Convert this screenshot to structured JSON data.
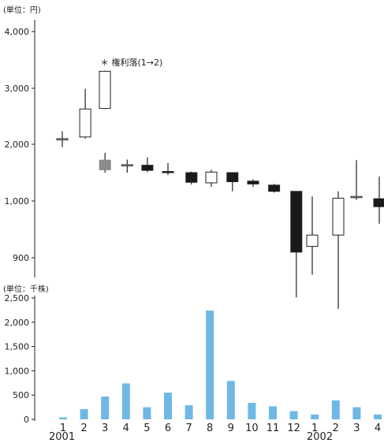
{
  "chart_data": [
    {
      "type": "candlestick",
      "unit_label": "(単位：円)",
      "yticks": [
        {
          "value": 900,
          "label": "900"
        },
        {
          "value": 1000,
          "label": "1,000"
        },
        {
          "value": 2000,
          "label": "2,000"
        },
        {
          "value": 3000,
          "label": "3,000"
        },
        {
          "value": 4000,
          "label": "4,000"
        }
      ],
      "annotation": "＊ 権利落(1→2)",
      "categories": [
        "1",
        "2",
        "3",
        "4",
        "5",
        "6",
        "7",
        "8",
        "9",
        "10",
        "11",
        "12",
        "1",
        "2",
        "3",
        "4"
      ],
      "year_labels": [
        "2001",
        "2002"
      ],
      "candles": [
        {
          "open": 2100,
          "high": 2230,
          "low": 1950,
          "close": 2080,
          "kind": "white"
        },
        {
          "open": 2130,
          "high": 2990,
          "low": 2100,
          "close": 2630,
          "kind": "white"
        },
        {
          "open": 2640,
          "high": 3310,
          "low": 2630,
          "close": 3300,
          "kind": "white"
        },
        {
          "open": 1720,
          "high": 1850,
          "low": 1500,
          "close": 1550,
          "kind": "gray"
        },
        {
          "open": 1640,
          "high": 1730,
          "low": 1500,
          "close": 1630,
          "kind": "white"
        },
        {
          "open": 1630,
          "high": 1770,
          "low": 1510,
          "close": 1540,
          "kind": "black"
        },
        {
          "open": 1520,
          "high": 1670,
          "low": 1460,
          "close": 1500,
          "kind": "black"
        },
        {
          "open": 1500,
          "high": 1520,
          "low": 1290,
          "close": 1330,
          "kind": "black"
        },
        {
          "open": 1320,
          "high": 1550,
          "low": 1250,
          "close": 1510,
          "kind": "white"
        },
        {
          "open": 1500,
          "high": 1500,
          "low": 1170,
          "close": 1340,
          "kind": "black"
        },
        {
          "open": 1350,
          "high": 1380,
          "low": 1250,
          "close": 1300,
          "kind": "black"
        },
        {
          "open": 1280,
          "high": 1300,
          "low": 1150,
          "close": 1170,
          "kind": "black"
        },
        {
          "open": 1170,
          "high": 1170,
          "low": 830,
          "close": 910,
          "kind": "black"
        },
        {
          "open": 920,
          "high": 1080,
          "low": 870,
          "close": 940,
          "kind": "white"
        },
        {
          "open": 940,
          "high": 1170,
          "low": 810,
          "close": 1050,
          "kind": "white"
        },
        {
          "open": 1070,
          "high": 1720,
          "low": 1020,
          "close": 1080,
          "kind": "white"
        },
        {
          "open": 1040,
          "high": 1430,
          "low": 960,
          "close": 990,
          "kind": "black"
        }
      ]
    },
    {
      "type": "bar",
      "unit_label": "(単位：千株)",
      "ylim": [
        0,
        2500
      ],
      "yticks": [
        {
          "value": 0,
          "label": "0"
        },
        {
          "value": 500,
          "label": "500"
        },
        {
          "value": 1000,
          "label": "1,000"
        },
        {
          "value": 1500,
          "label": "1,500"
        },
        {
          "value": 2000,
          "label": "2,000"
        },
        {
          "value": 2500,
          "label": "2,500"
        }
      ],
      "categories": [
        "1",
        "2",
        "3",
        "4",
        "5",
        "6",
        "7",
        "8",
        "9",
        "10",
        "11",
        "12",
        "1",
        "2",
        "3",
        "4"
      ],
      "values": [
        40,
        210,
        470,
        740,
        250,
        550,
        290,
        2240,
        790,
        340,
        270,
        170,
        100,
        390,
        250,
        100
      ],
      "bar_color": "#6fb8e6",
      "year_labels": [
        "2001",
        "2002"
      ]
    }
  ]
}
